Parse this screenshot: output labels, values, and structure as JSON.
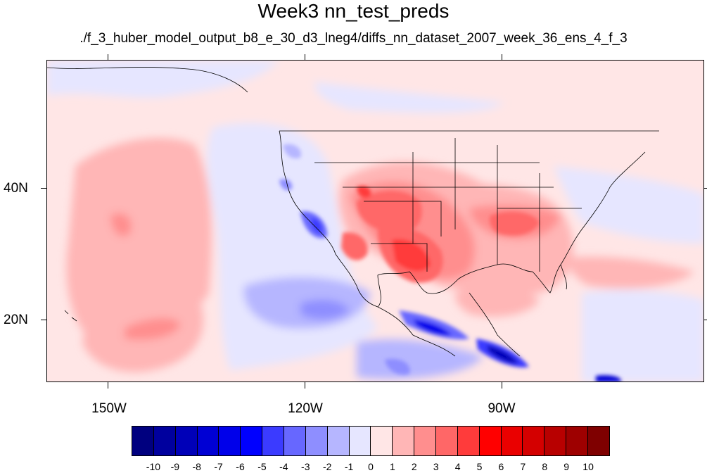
{
  "title": "Week3 nn_test_preds",
  "subtitle": "./f_3_huber_model_output_b8_e_30_d3_lneg4/diffs_nn_dataset_2007_week_36_ens_4_f_3",
  "map": {
    "lat_labels": [
      "40N",
      "20N"
    ],
    "lon_labels": [
      "150W",
      "120W",
      "90W"
    ]
  },
  "colorbar": {
    "labels": [
      "-10",
      "-9",
      "-8",
      "-7",
      "-6",
      "-5",
      "-4",
      "-3",
      "-2",
      "-1",
      "0",
      "1",
      "2",
      "3",
      "4",
      "5",
      "6",
      "7",
      "8",
      "9",
      "10"
    ],
    "colors": [
      "#00007f",
      "#00009e",
      "#0000b8",
      "#0000d4",
      "#0000ea",
      "#0000ff",
      "#3b3bff",
      "#6767ff",
      "#8e8eff",
      "#b6b6ff",
      "#e6e6ff",
      "#ffe6e6",
      "#ffb6b6",
      "#ff8e8e",
      "#ff6767",
      "#ff3b3b",
      "#ff0000",
      "#ea0000",
      "#d40000",
      "#b80000",
      "#9e0000",
      "#7f0000"
    ]
  }
}
